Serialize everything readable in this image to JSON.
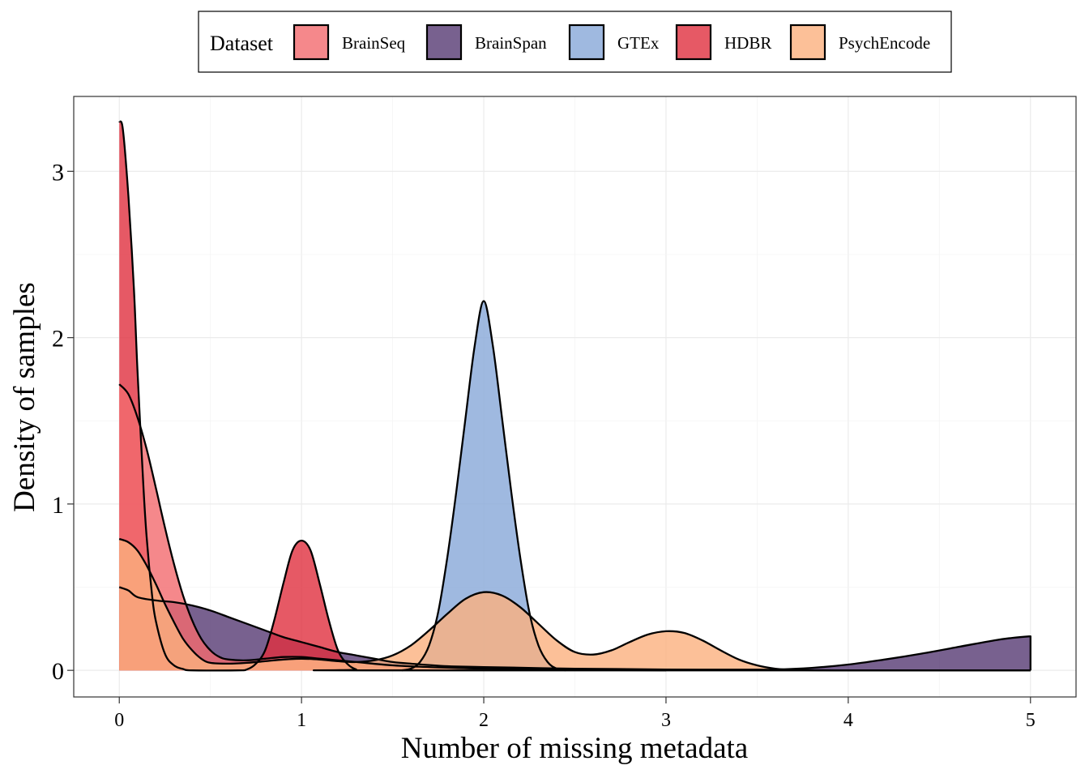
{
  "chart_data": {
    "type": "area",
    "chart_style": "density",
    "xlabel": "Number of missing metadata",
    "ylabel": "Density of samples",
    "xlim": [
      -0.25,
      5.25
    ],
    "ylim": [
      -0.16,
      3.45
    ],
    "x_ticks": [
      "0",
      "1",
      "2",
      "3",
      "4",
      "5"
    ],
    "y_ticks": [
      "0",
      "1",
      "2",
      "3"
    ],
    "grid": true,
    "legend": {
      "title": "Dataset",
      "position": "top",
      "entries": [
        "BrainSeq",
        "BrainSpan",
        "GTEx",
        "HDBR",
        "PsychEncode"
      ]
    },
    "series": [
      {
        "name": "BrainSpan",
        "color": "#4b2c69",
        "opacity": 0.75,
        "points": [
          [
            0,
            0.5
          ],
          [
            0.05,
            0.48
          ],
          [
            0.1,
            0.44
          ],
          [
            0.2,
            0.42
          ],
          [
            0.3,
            0.41
          ],
          [
            0.4,
            0.39
          ],
          [
            0.5,
            0.36
          ],
          [
            0.6,
            0.32
          ],
          [
            0.7,
            0.28
          ],
          [
            0.8,
            0.24
          ],
          [
            0.9,
            0.2
          ],
          [
            1.0,
            0.17
          ],
          [
            1.1,
            0.14
          ],
          [
            1.2,
            0.11
          ],
          [
            1.3,
            0.09
          ],
          [
            1.4,
            0.07
          ],
          [
            1.5,
            0.05
          ],
          [
            1.6,
            0.04
          ],
          [
            1.8,
            0.025
          ],
          [
            2.0,
            0.02
          ],
          [
            2.5,
            0.01
          ],
          [
            3.0,
            0.005
          ],
          [
            3.5,
            0.004
          ],
          [
            3.6,
            0.005
          ],
          [
            3.8,
            0.015
          ],
          [
            4.0,
            0.035
          ],
          [
            4.2,
            0.065
          ],
          [
            4.4,
            0.1
          ],
          [
            4.6,
            0.14
          ],
          [
            4.8,
            0.18
          ],
          [
            4.9,
            0.195
          ],
          [
            5.0,
            0.205
          ]
        ]
      },
      {
        "name": "GTEx",
        "color": "#8eadda",
        "opacity": 0.85,
        "points": [
          [
            1.55,
            0
          ],
          [
            1.6,
            0.01
          ],
          [
            1.65,
            0.05
          ],
          [
            1.7,
            0.15
          ],
          [
            1.75,
            0.35
          ],
          [
            1.8,
            0.68
          ],
          [
            1.85,
            1.08
          ],
          [
            1.9,
            1.52
          ],
          [
            1.95,
            1.95
          ],
          [
            2.0,
            2.22
          ],
          [
            2.05,
            1.95
          ],
          [
            2.1,
            1.52
          ],
          [
            2.15,
            1.08
          ],
          [
            2.2,
            0.68
          ],
          [
            2.25,
            0.35
          ],
          [
            2.3,
            0.15
          ],
          [
            2.35,
            0.05
          ],
          [
            2.4,
            0.01
          ],
          [
            2.45,
            0
          ]
        ]
      },
      {
        "name": "HDBR",
        "color": "#e0303e",
        "opacity": 0.8,
        "points": [
          [
            0,
            3.3
          ],
          [
            0.02,
            3.25
          ],
          [
            0.05,
            2.85
          ],
          [
            0.08,
            2.3
          ],
          [
            0.1,
            1.8
          ],
          [
            0.13,
            1.15
          ],
          [
            0.15,
            0.8
          ],
          [
            0.18,
            0.45
          ],
          [
            0.2,
            0.3
          ],
          [
            0.25,
            0.1
          ],
          [
            0.3,
            0.03
          ],
          [
            0.35,
            0.008
          ],
          [
            0.4,
            0
          ],
          [
            0.65,
            0
          ],
          [
            0.7,
            0.005
          ],
          [
            0.75,
            0.04
          ],
          [
            0.8,
            0.12
          ],
          [
            0.85,
            0.3
          ],
          [
            0.9,
            0.52
          ],
          [
            0.95,
            0.72
          ],
          [
            1.0,
            0.78
          ],
          [
            1.05,
            0.72
          ],
          [
            1.1,
            0.52
          ],
          [
            1.15,
            0.3
          ],
          [
            1.2,
            0.12
          ],
          [
            1.25,
            0.04
          ],
          [
            1.3,
            0.005
          ],
          [
            1.35,
            0
          ],
          [
            5.0,
            0
          ]
        ]
      },
      {
        "name": "BrainSeq",
        "color": "#f26a6e",
        "opacity": 0.8,
        "points": [
          [
            0,
            1.72
          ],
          [
            0.05,
            1.66
          ],
          [
            0.1,
            1.52
          ],
          [
            0.15,
            1.33
          ],
          [
            0.2,
            1.1
          ],
          [
            0.25,
            0.86
          ],
          [
            0.3,
            0.64
          ],
          [
            0.35,
            0.45
          ],
          [
            0.4,
            0.3
          ],
          [
            0.45,
            0.19
          ],
          [
            0.5,
            0.12
          ],
          [
            0.55,
            0.08
          ],
          [
            0.6,
            0.065
          ],
          [
            0.7,
            0.06
          ],
          [
            0.8,
            0.07
          ],
          [
            0.9,
            0.08
          ],
          [
            1.0,
            0.08
          ],
          [
            1.1,
            0.07
          ],
          [
            1.2,
            0.06
          ],
          [
            1.3,
            0.05
          ],
          [
            1.5,
            0.03
          ],
          [
            1.7,
            0.02
          ],
          [
            2.0,
            0.01
          ],
          [
            2.5,
            0.003
          ],
          [
            3.0,
            0
          ]
        ]
      },
      {
        "name": "PsychEncode",
        "color": "#fbb07e",
        "opacity": 0.8,
        "points": [
          [
            0,
            0.79
          ],
          [
            0.05,
            0.77
          ],
          [
            0.1,
            0.72
          ],
          [
            0.15,
            0.63
          ],
          [
            0.2,
            0.52
          ],
          [
            0.25,
            0.4
          ],
          [
            0.3,
            0.29
          ],
          [
            0.35,
            0.19
          ],
          [
            0.4,
            0.12
          ],
          [
            0.45,
            0.07
          ],
          [
            0.5,
            0.045
          ],
          [
            0.6,
            0.04
          ],
          [
            0.7,
            0.045
          ],
          [
            0.8,
            0.055
          ],
          [
            0.9,
            0.065
          ],
          [
            1.0,
            0.07
          ],
          [
            1.1,
            0.065
          ],
          [
            1.2,
            0.055
          ],
          [
            1.3,
            0.05
          ],
          [
            1.4,
            0.06
          ],
          [
            1.5,
            0.09
          ],
          [
            1.6,
            0.15
          ],
          [
            1.7,
            0.24
          ],
          [
            1.8,
            0.34
          ],
          [
            1.9,
            0.43
          ],
          [
            2.0,
            0.47
          ],
          [
            2.1,
            0.45
          ],
          [
            2.2,
            0.38
          ],
          [
            2.3,
            0.28
          ],
          [
            2.4,
            0.18
          ],
          [
            2.5,
            0.11
          ],
          [
            2.6,
            0.095
          ],
          [
            2.7,
            0.12
          ],
          [
            2.8,
            0.17
          ],
          [
            2.9,
            0.215
          ],
          [
            3.0,
            0.235
          ],
          [
            3.1,
            0.225
          ],
          [
            3.2,
            0.18
          ],
          [
            3.3,
            0.12
          ],
          [
            3.4,
            0.065
          ],
          [
            3.5,
            0.03
          ],
          [
            3.6,
            0.01
          ],
          [
            3.7,
            0.003
          ],
          [
            4.0,
            0
          ],
          [
            5.0,
            0
          ]
        ]
      }
    ]
  }
}
